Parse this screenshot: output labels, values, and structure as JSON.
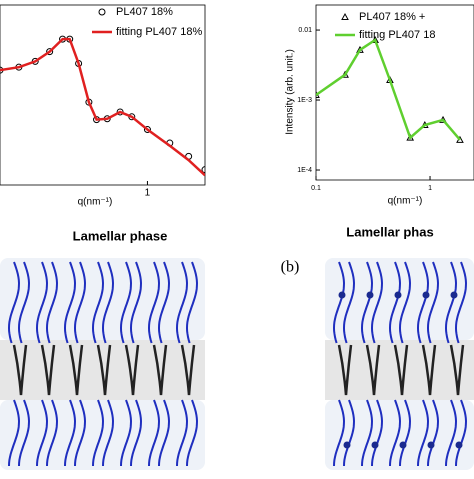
{
  "chart_data": [
    {
      "type": "line",
      "log_x": true,
      "log_y": true,
      "x": [
        0.3,
        0.35,
        0.4,
        0.45,
        0.5,
        0.53,
        0.57,
        0.62,
        0.66,
        0.72,
        0.8,
        0.88,
        1.0,
        1.2,
        1.4,
        1.6
      ],
      "xlim": [
        0.3,
        1.6
      ],
      "xticks": [
        1
      ],
      "ylim": [
        0.001,
        1
      ],
      "xlabel": "q(nm⁻¹)",
      "series": [
        {
          "name": "PL407 18%",
          "style": "markers",
          "marker": "circle",
          "color": "#000000",
          "values": [
            0.082,
            0.092,
            0.115,
            0.167,
            0.27,
            0.27,
            0.106,
            0.024,
            0.0123,
            0.0127,
            0.0165,
            0.0137,
            0.0084,
            0.005,
            0.003,
            0.0018
          ]
        },
        {
          "name": "fitting PL407 18%",
          "style": "line",
          "color": "#e02020",
          "values": [
            0.082,
            0.092,
            0.115,
            0.167,
            0.27,
            0.27,
            0.106,
            0.024,
            0.0123,
            0.0127,
            0.0165,
            0.0137,
            0.0084,
            0.0045,
            0.0026,
            0.00145
          ]
        }
      ]
    },
    {
      "type": "line",
      "log_x": true,
      "log_y": true,
      "x": [
        0.1,
        0.18,
        0.243,
        0.33,
        0.445,
        0.67,
        0.9,
        1.3,
        1.83
      ],
      "xlim": [
        0.1,
        2.43
      ],
      "xticks": [
        0.1,
        1
      ],
      "ylim": [
        7.2e-05,
        0.0228
      ],
      "yticks": [
        {
          "value": 0.01,
          "label": "0.01"
        },
        {
          "value": 0.001,
          "label": "1E-3"
        },
        {
          "value": 0.0001,
          "label": "1E-4"
        }
      ],
      "xlabel": "q(nm⁻¹)",
      "ylabel": "Intensity (arb. unit.)",
      "series": [
        {
          "name": "PL407 18% +",
          "style": "markers",
          "marker": "triangle",
          "color": "#000000",
          "values": [
            0.00118,
            0.0023,
            0.0052,
            0.0072,
            0.00193,
            0.00029,
            0.00044,
            0.00052,
            0.00027
          ]
        },
        {
          "name": "fitting PL407 18",
          "style": "line",
          "color": "#5fcf2f",
          "values": [
            0.00118,
            0.0023,
            0.0052,
            0.0072,
            0.00193,
            0.00029,
            0.00044,
            0.00052,
            0.00027
          ]
        }
      ]
    }
  ],
  "panel_label": "(b)",
  "diagrams": [
    {
      "title": "Lamellar phase"
    },
    {
      "title": "Lamellar phas"
    }
  ]
}
